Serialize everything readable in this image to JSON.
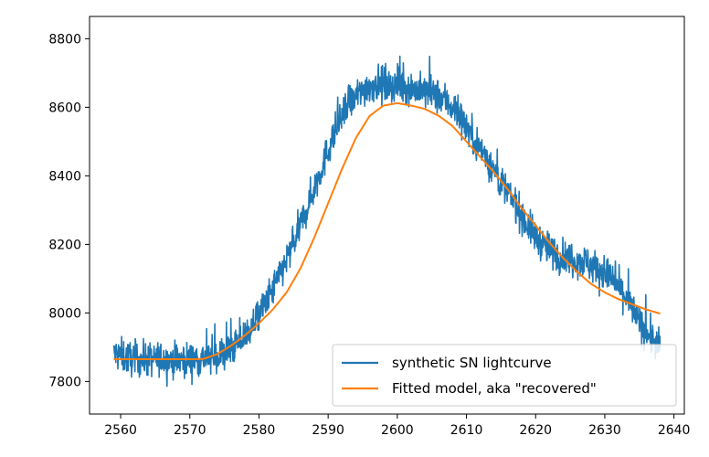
{
  "chart_data": {
    "type": "line",
    "title": "",
    "xlabel": "",
    "ylabel": "",
    "xlim": [
      2555.5,
      2641.5
    ],
    "ylim": [
      7705,
      8865
    ],
    "xticks": [
      2560,
      2570,
      2580,
      2590,
      2600,
      2610,
      2620,
      2630,
      2640
    ],
    "yticks": [
      7800,
      8000,
      8200,
      8400,
      8600,
      8800
    ],
    "legend_position": "lower-right",
    "grid": false,
    "series": [
      {
        "name": "synthetic SN lightcurve",
        "color": "#1f77b4",
        "style": "noisy",
        "noise_amplitude": 45,
        "x": [
          2559,
          2561,
          2563,
          2565,
          2567,
          2569,
          2571,
          2573,
          2575,
          2577,
          2579,
          2581,
          2583,
          2585,
          2587,
          2589,
          2591,
          2593,
          2595,
          2597,
          2599,
          2601,
          2603,
          2605,
          2607,
          2609,
          2611,
          2613,
          2615,
          2617,
          2619,
          2621,
          2623,
          2625,
          2627,
          2629,
          2631,
          2633,
          2635,
          2637,
          2638
        ],
        "y": [
          7880,
          7870,
          7865,
          7865,
          7865,
          7865,
          7865,
          7870,
          7880,
          7910,
          7960,
          8030,
          8110,
          8200,
          8310,
          8420,
          8530,
          8610,
          8650,
          8670,
          8665,
          8660,
          8650,
          8640,
          8620,
          8580,
          8510,
          8450,
          8380,
          8320,
          8250,
          8200,
          8170,
          8160,
          8150,
          8130,
          8100,
          8050,
          7970,
          7920,
          7900
        ]
      },
      {
        "name": "Fitted model, aka \"recovered\"",
        "color": "#ff7f0e",
        "style": "smooth",
        "x": [
          2559,
          2562,
          2565,
          2568,
          2571,
          2572,
          2574,
          2576,
          2578,
          2580,
          2582,
          2584,
          2586,
          2588,
          2590,
          2592,
          2594,
          2596,
          2598,
          2600,
          2602,
          2604,
          2606,
          2608,
          2610,
          2612,
          2614,
          2616,
          2618,
          2620,
          2622,
          2624,
          2626,
          2628,
          2630,
          2632,
          2634,
          2636,
          2638
        ],
        "y": [
          7865,
          7865,
          7865,
          7865,
          7865,
          7866,
          7880,
          7905,
          7935,
          7970,
          8010,
          8060,
          8130,
          8220,
          8320,
          8420,
          8510,
          8575,
          8605,
          8612,
          8605,
          8595,
          8575,
          8545,
          8500,
          8455,
          8410,
          8360,
          8305,
          8255,
          8205,
          8160,
          8120,
          8085,
          8060,
          8040,
          8025,
          8010,
          7998
        ]
      }
    ]
  }
}
